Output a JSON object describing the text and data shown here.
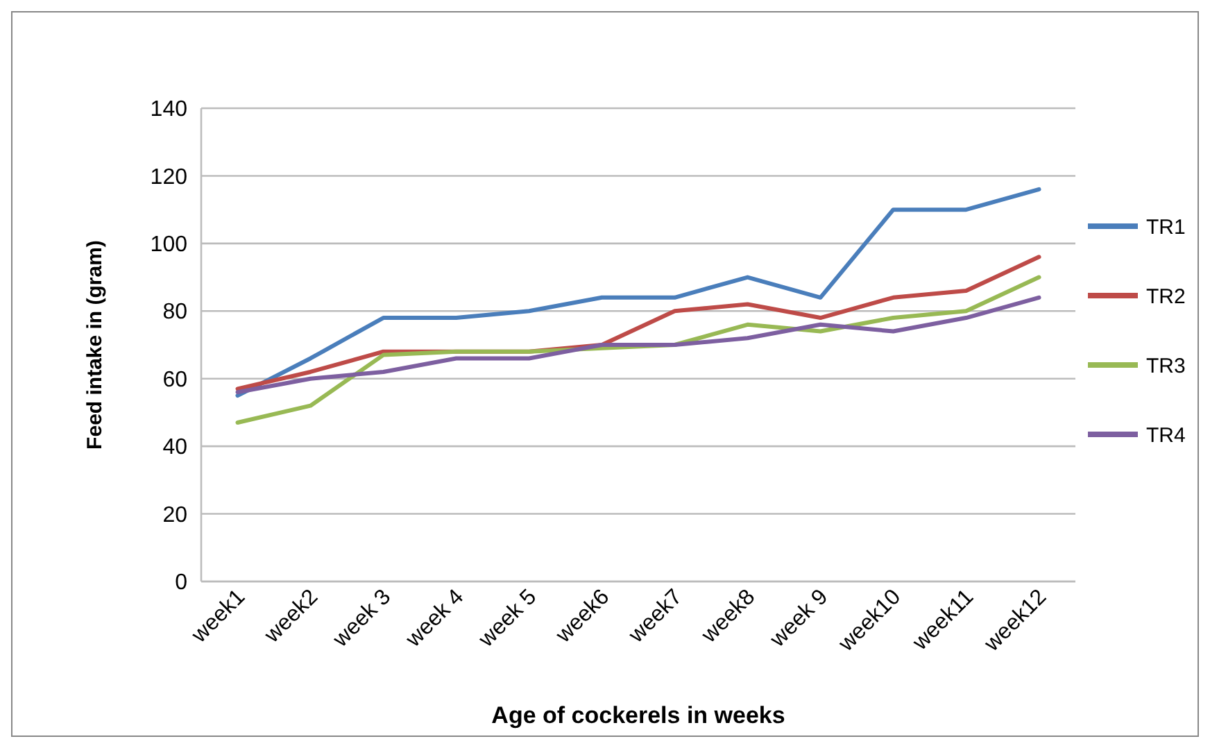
{
  "chart_data": {
    "type": "line",
    "xlabel": "Age of cockerels in weeks",
    "ylabel": "Feed intake in (gram)",
    "categories": [
      "week1",
      "week2",
      "week 3",
      "week 4",
      "week 5",
      "week6",
      "week7",
      "week8",
      "week 9",
      "week10",
      "week11",
      "week12"
    ],
    "series": [
      {
        "name": "TR1",
        "color": "#4a7ebb",
        "values": [
          55,
          66,
          78,
          78,
          80,
          84,
          84,
          90,
          84,
          110,
          110,
          116
        ]
      },
      {
        "name": "TR2",
        "color": "#be4b48",
        "values": [
          57,
          62,
          68,
          68,
          68,
          70,
          80,
          82,
          78,
          84,
          86,
          96
        ]
      },
      {
        "name": "TR3",
        "color": "#98b954",
        "values": [
          47,
          52,
          67,
          68,
          68,
          69,
          70,
          76,
          74,
          78,
          80,
          90
        ]
      },
      {
        "name": "TR4",
        "color": "#7d5fa0",
        "values": [
          56,
          60,
          62,
          66,
          66,
          70,
          70,
          72,
          76,
          74,
          78,
          84
        ]
      }
    ],
    "ylim": [
      0,
      140
    ],
    "yticks": [
      0,
      20,
      40,
      60,
      80,
      100,
      120,
      140
    ],
    "grid": "y",
    "legend": "right",
    "marker": "none",
    "line_style": "solid"
  }
}
